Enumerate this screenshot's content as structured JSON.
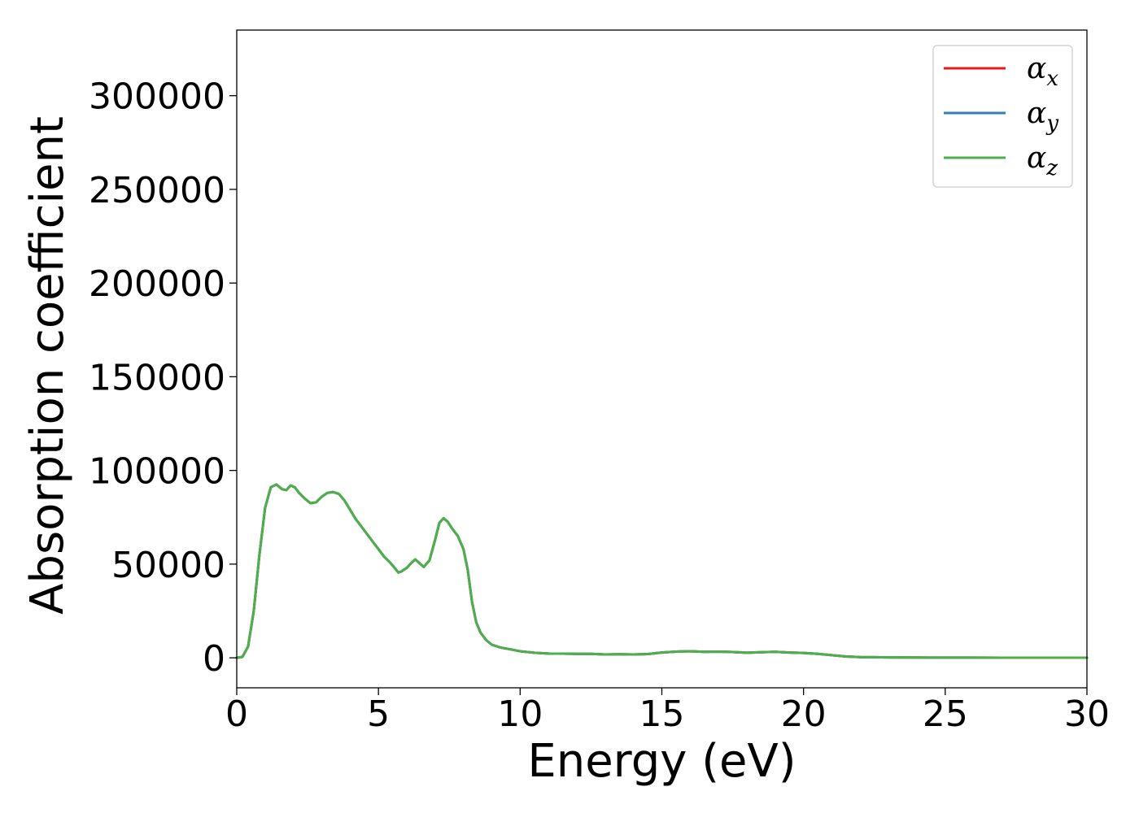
{
  "chart_data": {
    "type": "line",
    "xlabel": "Energy (eV)",
    "ylabel": "Absorption coefficient",
    "xlim": [
      0,
      30
    ],
    "ylim": [
      -16000,
      335000
    ],
    "xticks": [
      0,
      5,
      10,
      15,
      20,
      25,
      30
    ],
    "yticks": [
      0,
      50000,
      100000,
      150000,
      200000,
      250000,
      300000
    ],
    "grid": false,
    "legend": {
      "placement": "top-right",
      "entries": [
        {
          "symbol": "α",
          "subscript": "x",
          "color": "#e41a1c"
        },
        {
          "symbol": "α",
          "subscript": "y",
          "color": "#377eb8"
        },
        {
          "symbol": "α",
          "subscript": "z",
          "color": "#4daf4a"
        }
      ]
    },
    "x": [
      0,
      0.2,
      0.4,
      0.6,
      0.8,
      1.0,
      1.2,
      1.4,
      1.6,
      1.75,
      1.9,
      2.05,
      2.2,
      2.4,
      2.6,
      2.8,
      3.0,
      3.2,
      3.4,
      3.6,
      3.8,
      4.0,
      4.2,
      4.4,
      4.6,
      4.8,
      5.0,
      5.2,
      5.4,
      5.6,
      5.7,
      5.8,
      5.9,
      6.0,
      6.15,
      6.3,
      6.45,
      6.6,
      6.8,
      7.0,
      7.15,
      7.3,
      7.45,
      7.6,
      7.8,
      8.0,
      8.15,
      8.3,
      8.45,
      8.6,
      8.8,
      9.0,
      9.3,
      9.6,
      10,
      10.5,
      11,
      11.5,
      12,
      12.5,
      13,
      13.5,
      14,
      14.5,
      15,
      15.5,
      16,
      16.5,
      17,
      17.5,
      18,
      18.5,
      19,
      19.5,
      20,
      20.5,
      21,
      21.5,
      22,
      22.5,
      23,
      24,
      25,
      26,
      27,
      28,
      29,
      30
    ],
    "series": [
      {
        "name": "αx",
        "color": "#e41a1c",
        "values": [
          0,
          500,
          6000,
          25000,
          55000,
          80000,
          91000,
          92500,
          90000,
          89500,
          92000,
          91000,
          88000,
          85000,
          82500,
          83000,
          86000,
          88000,
          88500,
          87500,
          84000,
          79000,
          74000,
          70000,
          66000,
          62000,
          58000,
          54000,
          51000,
          47500,
          45500,
          46000,
          47000,
          48000,
          50500,
          52500,
          50500,
          48500,
          52000,
          63000,
          72000,
          74500,
          72500,
          69000,
          65000,
          58000,
          47000,
          30000,
          19000,
          13500,
          9500,
          7000,
          5500,
          4700,
          3500,
          2700,
          2300,
          2200,
          2100,
          2100,
          1800,
          1900,
          1800,
          2000,
          2800,
          3300,
          3500,
          3200,
          3300,
          3100,
          2700,
          3000,
          3200,
          2800,
          2600,
          2100,
          1400,
          700,
          400,
          300,
          200,
          150,
          100,
          100,
          80,
          70,
          60,
          50
        ]
      },
      {
        "name": "αy",
        "color": "#377eb8",
        "values": [
          0,
          500,
          6000,
          25000,
          55000,
          80000,
          91000,
          92500,
          90000,
          89500,
          92000,
          91000,
          88000,
          85000,
          82500,
          83000,
          86000,
          88000,
          88500,
          87500,
          84000,
          79000,
          74000,
          70000,
          66000,
          62000,
          58000,
          54000,
          51000,
          47500,
          45500,
          46000,
          47000,
          48000,
          50500,
          52500,
          50500,
          48500,
          52000,
          63000,
          72000,
          74500,
          72500,
          69000,
          65000,
          58000,
          47000,
          30000,
          19000,
          13500,
          9500,
          7000,
          5500,
          4700,
          3500,
          2700,
          2300,
          2200,
          2100,
          2100,
          1800,
          1900,
          1800,
          2000,
          2800,
          3300,
          3500,
          3200,
          3300,
          3100,
          2700,
          3000,
          3200,
          2800,
          2600,
          2100,
          1400,
          700,
          400,
          300,
          200,
          150,
          100,
          100,
          80,
          70,
          60,
          50
        ]
      },
      {
        "name": "αz",
        "color": "#4daf4a",
        "values": [
          0,
          500,
          6000,
          25000,
          55000,
          80000,
          91000,
          92500,
          90000,
          89500,
          92000,
          91000,
          88000,
          85000,
          82500,
          83000,
          86000,
          88000,
          88500,
          87500,
          84000,
          79000,
          74000,
          70000,
          66000,
          62000,
          58000,
          54000,
          51000,
          47500,
          45500,
          46000,
          47000,
          48000,
          50500,
          52500,
          50500,
          48500,
          52000,
          63000,
          72000,
          74500,
          72500,
          69000,
          65000,
          58000,
          47000,
          30000,
          19000,
          13500,
          9500,
          7000,
          5500,
          4700,
          3500,
          2700,
          2300,
          2200,
          2100,
          2100,
          1800,
          1900,
          1800,
          2000,
          2800,
          3300,
          3500,
          3200,
          3300,
          3100,
          2700,
          3000,
          3200,
          2800,
          2600,
          2100,
          1400,
          700,
          400,
          300,
          200,
          150,
          100,
          100,
          80,
          70,
          60,
          50
        ]
      }
    ]
  }
}
